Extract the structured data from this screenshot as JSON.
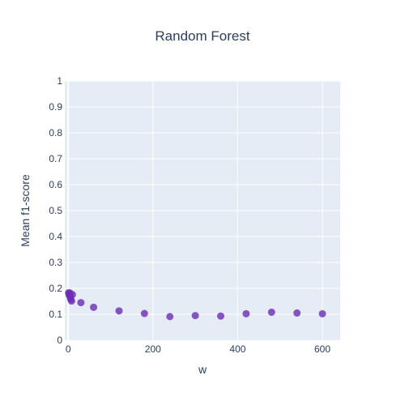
{
  "chart_data": {
    "type": "scatter",
    "title": "Random Forest",
    "xlabel": "w",
    "ylabel": "Mean f1-score",
    "xlim": [
      -8,
      642
    ],
    "ylim": [
      0,
      1
    ],
    "x_ticks": [
      0,
      200,
      400,
      600
    ],
    "y_ticks": [
      0,
      0.1,
      0.2,
      0.3,
      0.4,
      0.5,
      0.6,
      0.7,
      0.8,
      0.9,
      1
    ],
    "grid": true,
    "legend": "none",
    "colors": {
      "plot_background": "#e5ecf6",
      "gridline": "#ffffff",
      "marker": "#6a2db8",
      "text": "#2a3f5f"
    },
    "series": [
      {
        "x": [
          1,
          2,
          3,
          4,
          5,
          6,
          8,
          10,
          30,
          60,
          120,
          180,
          240,
          300,
          360,
          420,
          480,
          540,
          600
        ],
        "y": [
          0.183,
          0.178,
          0.172,
          0.182,
          0.167,
          0.158,
          0.151,
          0.176,
          0.145,
          0.127,
          0.113,
          0.103,
          0.091,
          0.095,
          0.093,
          0.102,
          0.108,
          0.105,
          0.102
        ]
      }
    ]
  }
}
